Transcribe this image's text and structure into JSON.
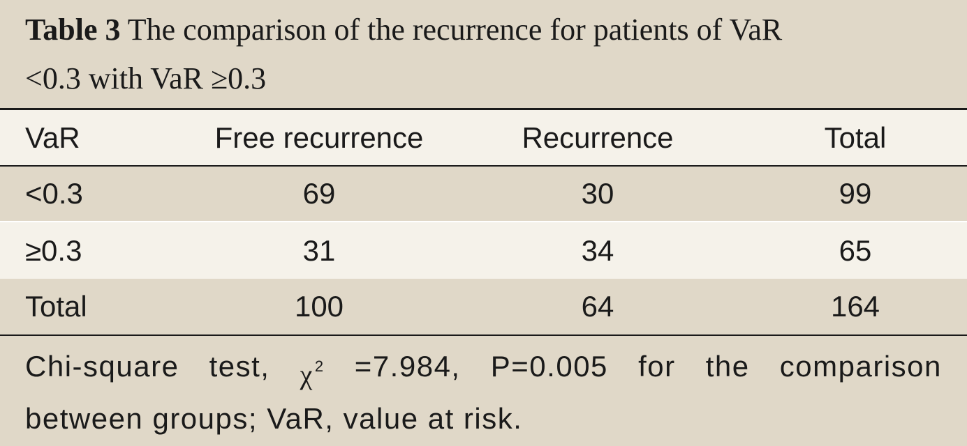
{
  "title": {
    "label": "Table 3",
    "text_line1": "The comparison of the recurrence for patients of VaR",
    "text_line2": "<0.3 with VaR ≥0.3"
  },
  "table": {
    "columns": [
      "VaR",
      "Free recurrence",
      "Recurrence",
      "Total"
    ],
    "rows": [
      [
        "<0.3",
        "69",
        "30",
        "99"
      ],
      [
        "≥0.3",
        "31",
        "34",
        "65"
      ],
      [
        "Total",
        "100",
        "64",
        "164"
      ]
    ]
  },
  "footnote": {
    "words": [
      "Chi-square",
      "test,",
      "χ",
      "2",
      "=7.984,",
      "P=0.005",
      "for",
      "the",
      "comparison"
    ],
    "line2": "between groups; VaR, value at risk."
  },
  "colors": {
    "tan_background": "#e0d8c8",
    "cream_background": "#f5f2ea",
    "text": "#1a1a1a"
  }
}
